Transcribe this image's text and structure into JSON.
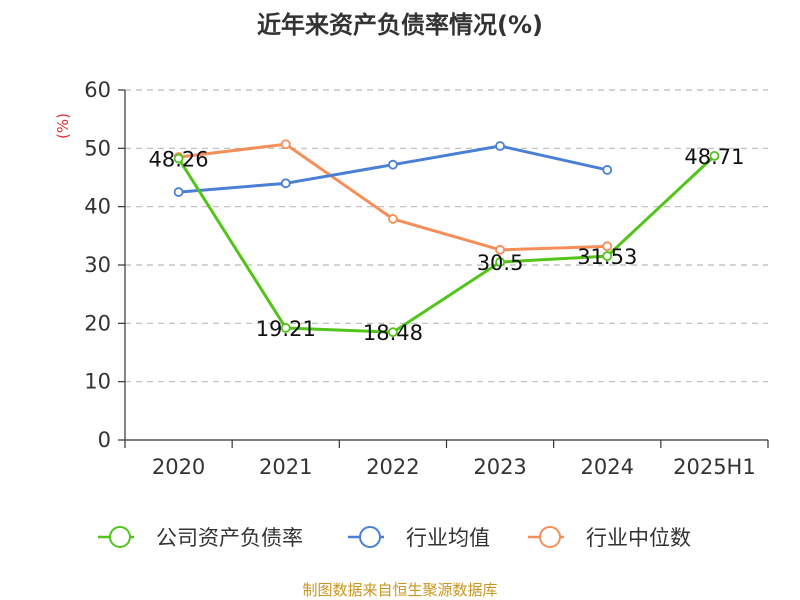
{
  "chart_data": {
    "type": "line",
    "title": "近年来资产负债率情况(%)",
    "ylabel": "(%)",
    "xlabel": "",
    "categories": [
      "2020",
      "2021",
      "2022",
      "2023",
      "2024",
      "2025H1"
    ],
    "ylim": [
      0,
      60
    ],
    "yticks": [
      "0",
      "10",
      "20",
      "30",
      "40",
      "50",
      "60"
    ],
    "grid": true,
    "legend_position": "bottom",
    "series": [
      {
        "name": "公司资产负债率",
        "color": "#52c41a",
        "values": [
          48.26,
          19.21,
          18.48,
          30.5,
          31.53,
          48.71
        ],
        "labels": [
          "48.26",
          "19.21",
          "18.48",
          "30.5",
          "31.53",
          "48.71"
        ]
      },
      {
        "name": "行业均值",
        "color": "#4a7fd6",
        "values": [
          42.5,
          44.0,
          47.2,
          50.4,
          46.3,
          null
        ]
      },
      {
        "name": "行业中位数",
        "color": "#f58f5a",
        "values": [
          48.5,
          50.7,
          37.9,
          32.6,
          33.2,
          null
        ]
      }
    ]
  },
  "source": "制图数据来自恒生聚源数据库"
}
